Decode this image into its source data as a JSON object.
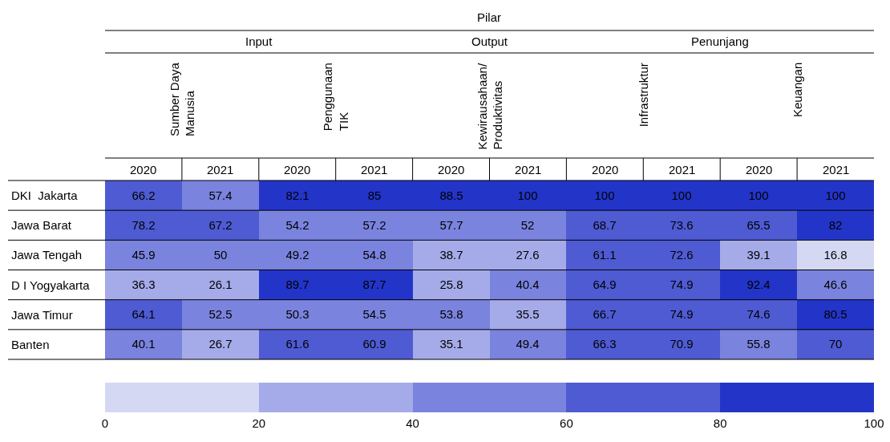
{
  "chart_data": {
    "type": "heatmap",
    "annotations": [
      "Pilar",
      "Input",
      "Output",
      "Penunjang",
      "Sumber Daya\nManusia",
      "Penggunaan\nTIK",
      "Kewirausahaan/\nProduktivitas",
      "Infrastruktur",
      "Keuangan"
    ],
    "categories": [
      "2020",
      "2021",
      "2020",
      "2021",
      "2020",
      "2021",
      "2020",
      "2021",
      "2020",
      "2021"
    ],
    "y_categories": [
      "DKI  Jakarta",
      "Jawa Barat",
      "Jawa Tengah",
      "D I Yogyakarta",
      "Jawa Timur",
      "Banten"
    ],
    "cells": [
      [
        66.2,
        57.4,
        82.1,
        85,
        88.5,
        100,
        100,
        100,
        100,
        100
      ],
      [
        78.2,
        67.2,
        54.2,
        57.2,
        57.7,
        52,
        68.7,
        73.6,
        65.5,
        82
      ],
      [
        45.9,
        50,
        49.2,
        54.8,
        38.7,
        27.6,
        61.1,
        72.6,
        39.1,
        16.8
      ],
      [
        36.3,
        26.1,
        89.7,
        87.7,
        25.8,
        40.4,
        64.9,
        74.9,
        92.4,
        46.6
      ],
      [
        64.1,
        52.5,
        50.3,
        54.5,
        53.8,
        35.5,
        66.7,
        74.9,
        74.6,
        80.5
      ],
      [
        40.1,
        26.7,
        61.6,
        60.9,
        35.1,
        49.4,
        66.3,
        70.9,
        55.8,
        70
      ]
    ],
    "data_labels": true,
    "clim": [
      0,
      100
    ],
    "cticks": [
      0,
      20,
      40,
      60,
      80,
      100
    ]
  }
}
